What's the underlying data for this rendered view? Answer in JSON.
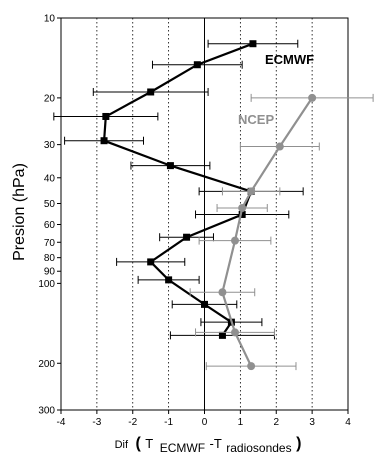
{
  "chart_data": {
    "type": "line",
    "ylabel": "Presion (hPa)",
    "xlabel": {
      "prefix": "Dif",
      "open": "(",
      "t1": "T",
      "sub1": "ECMWF",
      "dash": "-T",
      "sub2": "radiosondes",
      "close": ")"
    },
    "xlim": [
      -4,
      4
    ],
    "x_ticks": [
      -4,
      -3,
      -2,
      -1,
      0,
      1,
      2,
      3,
      4
    ],
    "y_scale": "log",
    "ylim": [
      10,
      300
    ],
    "y_ticks": [
      10,
      20,
      30,
      40,
      50,
      60,
      70,
      80,
      90,
      100,
      200,
      300
    ],
    "grid": "dotted vertical lines at x = -3, -2, -1, 1, 2, 3",
    "reference_line": "solid vertical line at x = 0",
    "series": [
      {
        "name": "ECMWF",
        "color": "#000000",
        "marker": "square",
        "points": [
          {
            "p": 12.5,
            "x": 1.35,
            "err": 1.25
          },
          {
            "p": 15,
            "x": -0.2,
            "err": 1.25
          },
          {
            "p": 19,
            "x": -1.5,
            "err": 1.6
          },
          {
            "p": 23.5,
            "x": -2.75,
            "err": 1.45
          },
          {
            "p": 29,
            "x": -2.8,
            "err": 1.1
          },
          {
            "p": 36,
            "x": -0.95,
            "err": 1.1
          },
          {
            "p": 45,
            "x": 1.3,
            "err": 1.45
          },
          {
            "p": 55,
            "x": 1.05,
            "err": 1.3
          },
          {
            "p": 67,
            "x": -0.5,
            "err": 0.75
          },
          {
            "p": 83,
            "x": -1.5,
            "err": 0.95
          },
          {
            "p": 97,
            "x": -1.0,
            "err": 0.85
          },
          {
            "p": 120,
            "x": 0.0,
            "err": 0.9
          },
          {
            "p": 140,
            "x": 0.75,
            "err": 0.85
          },
          {
            "p": 157,
            "x": 0.5,
            "err": 1.45
          }
        ]
      },
      {
        "name": "NCEP",
        "color": "#909090",
        "marker": "circle",
        "points": [
          {
            "p": 20,
            "x": 3.0,
            "err": 1.7
          },
          {
            "p": 30.5,
            "x": 2.1,
            "err": 1.1
          },
          {
            "p": 45,
            "x": 1.3,
            "err": 0.8
          },
          {
            "p": 52,
            "x": 1.05,
            "err": 0.7
          },
          {
            "p": 69,
            "x": 0.85,
            "err": 1.0
          },
          {
            "p": 108,
            "x": 0.5,
            "err": 0.9
          },
          {
            "p": 153,
            "x": 0.85,
            "err": 1.1
          },
          {
            "p": 205,
            "x": 1.3,
            "err": 1.25
          }
        ]
      }
    ]
  }
}
